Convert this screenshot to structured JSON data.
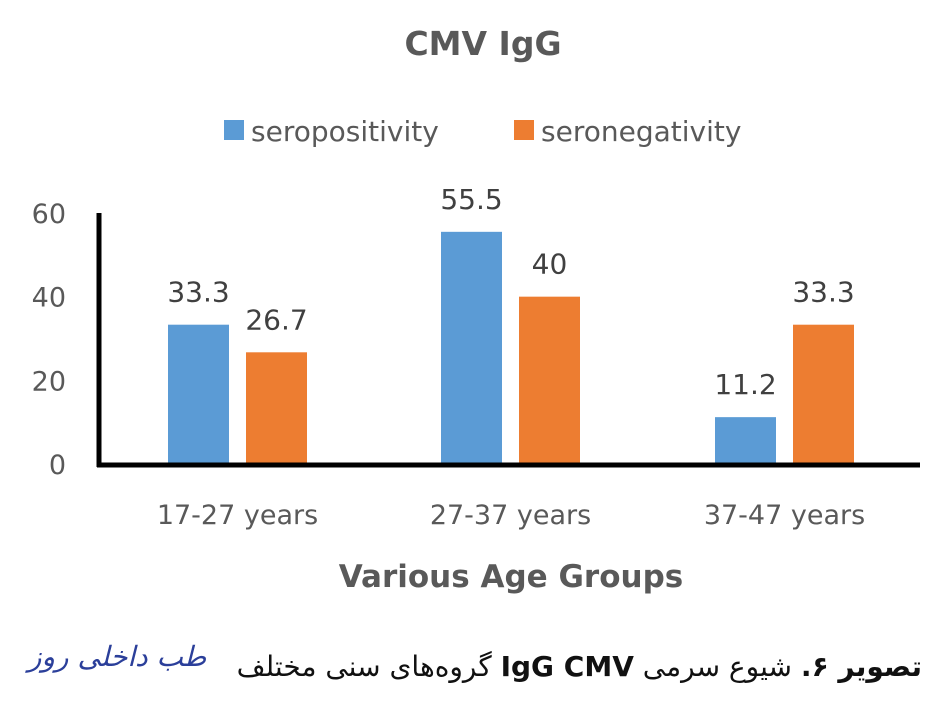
{
  "chart_data": {
    "type": "bar",
    "title": "CMV IgG",
    "xlabel": "Various Age Groups",
    "ylabel": "",
    "categories": [
      "17-27 years",
      "27-37 years",
      "37-47 years"
    ],
    "series": [
      {
        "name": "seropositivity",
        "values": [
          33.3,
          55.5,
          11.2
        ],
        "value_labels": [
          "33.3",
          "55.5",
          "11.2"
        ],
        "color": "#5b9bd5"
      },
      {
        "name": "seronegativity",
        "values": [
          26.7,
          40,
          33.3
        ],
        "value_labels": [
          "26.7",
          "40",
          "33.3"
        ],
        "color": "#ed7d31"
      }
    ],
    "ylim": [
      0,
      60
    ],
    "yticks": [
      0,
      20,
      40,
      60
    ],
    "ytick_labels": [
      "0",
      "20",
      "40",
      "60"
    ],
    "grid": false,
    "legend_position": "top"
  },
  "caption": {
    "label": "تصویر ۶.",
    "text_before": "شیوع سرمی",
    "text_ltr": "IgG CMV",
    "text_after": "گروه‌های سنی مختلف"
  },
  "logo": {
    "text": "طب داخلی روز"
  }
}
